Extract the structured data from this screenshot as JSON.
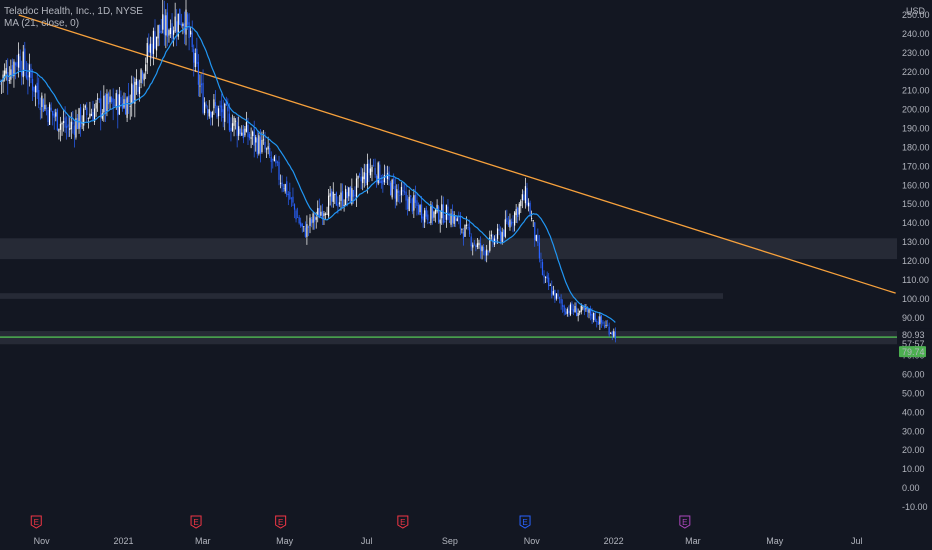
{
  "window": {
    "symbol_title": "Teladoc Health, Inc., 1D, NYSE",
    "indicator": "MA (21, close, 0)",
    "currency": "USD"
  },
  "price_axis": {
    "ticks": [
      "250.00",
      "240.00",
      "230.00",
      "220.00",
      "210.00",
      "200.00",
      "190.00",
      "180.00",
      "170.00",
      "160.00",
      "150.00",
      "140.00",
      "130.00",
      "120.00",
      "110.00",
      "100.00",
      "90.00",
      "80.00",
      "70.00",
      "60.00",
      "50.00",
      "40.00",
      "30.00",
      "20.00",
      "10.00",
      "0.00",
      "-10.00"
    ],
    "ymin": -10,
    "ymax": 250,
    "last_price_label": "80.93",
    "countdown_label": "57:57",
    "ma_value_label": "79.74"
  },
  "time_axis": {
    "labels": [
      "Nov",
      "2021",
      "Mar",
      "May",
      "Jul",
      "Sep",
      "Nov",
      "2022",
      "Mar",
      "May",
      "Jul"
    ]
  },
  "colors": {
    "background": "#131722",
    "candle_up": "#ffffff",
    "candle_down": "#2962ff",
    "ma_line": "#2196f3",
    "trend_line": "#f7a13c",
    "zone": "#2a2e39",
    "support_line": "#4caf50",
    "ma_badge": "#4caf50",
    "earnings_red": "#f23645",
    "earnings_blue": "#2962ff",
    "earnings_purple": "#ab47bc"
  },
  "zones": [
    {
      "name": "resistance-zone-130",
      "from": 121,
      "to": 132
    },
    {
      "name": "resistance-zone-100",
      "from": 100,
      "to": 103
    },
    {
      "name": "support-zone-80",
      "from": 76,
      "to": 83
    }
  ],
  "support_level": 79.74,
  "earnings_markers": [
    {
      "label": "E",
      "type": "red"
    },
    {
      "label": "E",
      "type": "red"
    },
    {
      "label": "E",
      "type": "red"
    },
    {
      "label": "E",
      "type": "red"
    },
    {
      "label": "E",
      "type": "blue"
    },
    {
      "label": "E",
      "type": "purple"
    }
  ],
  "chart_data": {
    "type": "candlestick",
    "title": "Teladoc Health, Inc., 1D, NYSE",
    "x_axis_labels": [
      "Nov",
      "2021",
      "Mar",
      "May",
      "Jul",
      "Sep",
      "Nov",
      "2022",
      "Mar",
      "May",
      "Jul"
    ],
    "y_range": [
      -10,
      250
    ],
    "approx_close_path": [
      {
        "date": "2020-10-01",
        "close": 215
      },
      {
        "date": "2020-10-15",
        "close": 228
      },
      {
        "date": "2020-11-05",
        "close": 200
      },
      {
        "date": "2020-11-20",
        "close": 190
      },
      {
        "date": "2020-12-10",
        "close": 200
      },
      {
        "date": "2021-01-05",
        "close": 205
      },
      {
        "date": "2021-01-25",
        "close": 240
      },
      {
        "date": "2021-02-15",
        "close": 250
      },
      {
        "date": "2021-03-01",
        "close": 205
      },
      {
        "date": "2021-03-20",
        "close": 195
      },
      {
        "date": "2021-04-15",
        "close": 180
      },
      {
        "date": "2021-05-01",
        "close": 160
      },
      {
        "date": "2021-05-15",
        "close": 135
      },
      {
        "date": "2021-06-01",
        "close": 150
      },
      {
        "date": "2021-06-20",
        "close": 155
      },
      {
        "date": "2021-07-05",
        "close": 170
      },
      {
        "date": "2021-07-25",
        "close": 155
      },
      {
        "date": "2021-08-15",
        "close": 145
      },
      {
        "date": "2021-09-01",
        "close": 145
      },
      {
        "date": "2021-09-25",
        "close": 125
      },
      {
        "date": "2021-10-10",
        "close": 135
      },
      {
        "date": "2021-10-28",
        "close": 155
      },
      {
        "date": "2021-11-10",
        "close": 110
      },
      {
        "date": "2021-11-25",
        "close": 95
      },
      {
        "date": "2021-12-15",
        "close": 92
      },
      {
        "date": "2022-01-03",
        "close": 80.93
      }
    ],
    "moving_average": {
      "name": "MA (21, close, 0)",
      "last": 79.74
    },
    "trend_line": {
      "from": {
        "date": "2020-10-15",
        "price": 250
      },
      "to": {
        "date": "2022-07-30",
        "price": 103
      }
    },
    "last_price": 80.93
  }
}
